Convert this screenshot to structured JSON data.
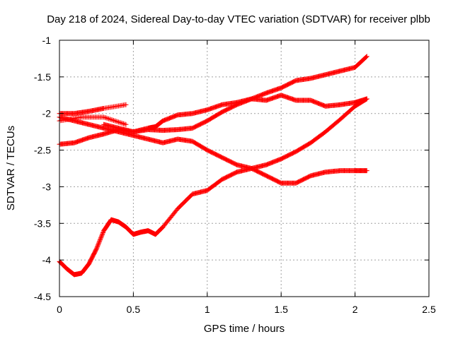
{
  "chart_data": {
    "type": "scatter",
    "title": "Day 218 of 2024, Sidereal Day-to-day VTEC variation (SDTVAR) for receiver plbb",
    "xlabel": "GPS time / hours",
    "ylabel": "SDTVAR / TECUs",
    "xlim": [
      0,
      2.5
    ],
    "ylim": [
      -4.5,
      -1
    ],
    "xticks": [
      "0",
      "0.5",
      "1",
      "1.5",
      "2",
      "2.5"
    ],
    "yticks": [
      "-1",
      "-1.5",
      "-2",
      "-2.5",
      "-3",
      "-3.5",
      "-4",
      "-4.5"
    ],
    "grid": true,
    "marker": "+",
    "color": "#ff0000",
    "series": [
      {
        "x": [
          0,
          0.1,
          0.2,
          0.3,
          0.45
        ],
        "y": [
          -2.0,
          -2.0,
          -1.97,
          -1.93,
          -1.88
        ]
      },
      {
        "x": [
          0,
          0.15,
          0.3,
          0.45
        ],
        "y": [
          -2.1,
          -2.05,
          -2.05,
          -2.15
        ]
      },
      {
        "x": [
          0,
          0.1,
          0.2,
          0.3,
          0.4,
          0.5,
          0.6,
          0.7,
          0.8,
          0.9,
          1.0,
          1.1,
          1.2,
          1.3,
          1.4,
          1.5,
          1.6,
          1.7,
          1.8,
          1.9,
          2.0,
          2.08
        ],
        "y": [
          -2.05,
          -2.1,
          -2.15,
          -2.2,
          -2.25,
          -2.3,
          -2.35,
          -2.4,
          -2.35,
          -2.38,
          -2.5,
          -2.6,
          -2.7,
          -2.75,
          -2.85,
          -2.95,
          -2.95,
          -2.85,
          -2.8,
          -2.78,
          -2.78,
          -2.78
        ]
      },
      {
        "x": [
          0,
          0.1,
          0.2,
          0.3,
          0.4,
          0.5,
          0.6,
          0.7,
          0.8,
          0.9,
          1.0,
          1.1,
          1.2,
          1.3,
          1.4,
          1.5,
          1.6,
          1.7,
          1.8,
          1.9,
          2.0,
          2.08
        ],
        "y": [
          -2.42,
          -2.4,
          -2.33,
          -2.28,
          -2.22,
          -2.25,
          -2.22,
          -2.23,
          -2.22,
          -2.2,
          -2.1,
          -1.98,
          -1.88,
          -1.8,
          -1.82,
          -1.75,
          -1.82,
          -1.82,
          -1.9,
          -1.88,
          -1.85,
          -1.8
        ]
      },
      {
        "x": [
          0.3,
          0.4,
          0.5,
          0.6,
          0.65,
          0.7,
          0.8,
          0.9,
          1.0,
          1.1,
          1.2,
          1.3,
          1.4,
          1.5,
          1.6,
          1.7,
          1.8,
          1.9,
          2.0,
          2.08
        ],
        "y": [
          -2.15,
          -2.2,
          -2.25,
          -2.2,
          -2.18,
          -2.1,
          -2.02,
          -2.0,
          -1.95,
          -1.88,
          -1.85,
          -1.8,
          -1.72,
          -1.65,
          -1.55,
          -1.52,
          -1.47,
          -1.42,
          -1.37,
          -1.22
        ]
      },
      {
        "x": [
          0,
          0.05,
          0.1,
          0.15,
          0.2,
          0.25,
          0.3,
          0.35,
          0.4,
          0.45,
          0.5,
          0.55,
          0.6,
          0.65,
          0.7,
          0.8,
          0.9,
          1.0,
          1.1,
          1.2,
          1.3,
          1.4,
          1.5,
          1.6,
          1.7,
          1.8,
          1.9,
          2.0,
          2.08
        ],
        "y": [
          -4.02,
          -4.12,
          -4.2,
          -4.18,
          -4.05,
          -3.85,
          -3.6,
          -3.45,
          -3.48,
          -3.55,
          -3.65,
          -3.62,
          -3.6,
          -3.65,
          -3.55,
          -3.3,
          -3.1,
          -3.05,
          -2.9,
          -2.8,
          -2.75,
          -2.7,
          -2.62,
          -2.52,
          -2.4,
          -2.25,
          -2.08,
          -1.9,
          -1.8
        ]
      }
    ]
  }
}
